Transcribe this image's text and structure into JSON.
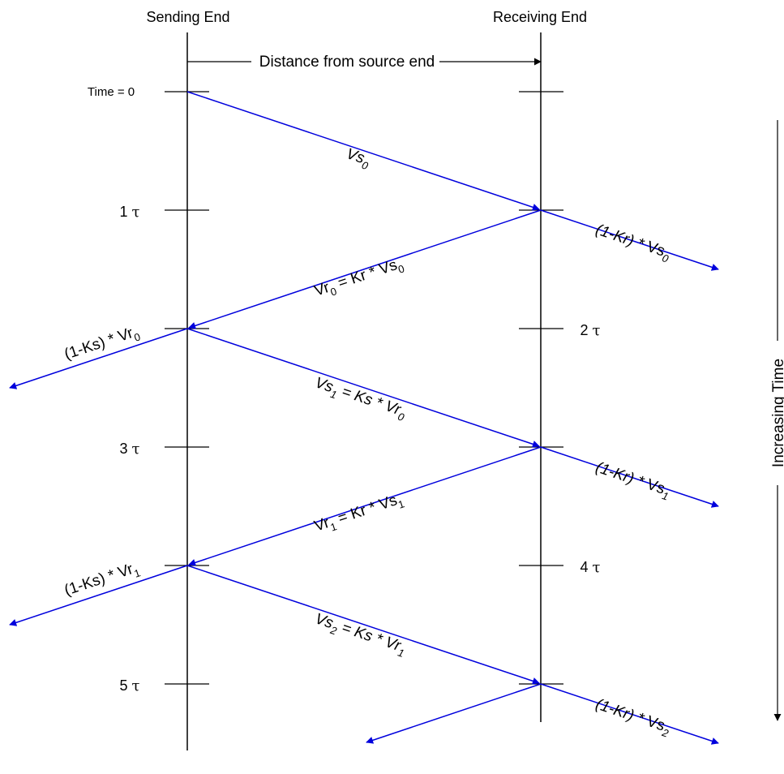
{
  "headers": {
    "sending": "Sending End",
    "receiving": "Receiving End"
  },
  "distance_label": "Distance from source end",
  "time_axis_label": "Increasing Time",
  "time_marks": {
    "t0": "Time = 0",
    "t1": "1",
    "t2": "2",
    "t3": "3",
    "t4": "4",
    "t5": "5",
    "tau": "τ"
  },
  "labels": {
    "vs": "Vs",
    "vr": "Vr",
    "kr_times": "Kr * ",
    "ks_times": "Ks * ",
    "eq": " = ",
    "one_minus_kr": "(1-Kr) * ",
    "one_minus_ks": "(1-Ks) * ",
    "sub0": "0",
    "sub1": "1",
    "sub2": "2"
  },
  "colors": {
    "wave": "#0000dd",
    "line": "#000000"
  }
}
